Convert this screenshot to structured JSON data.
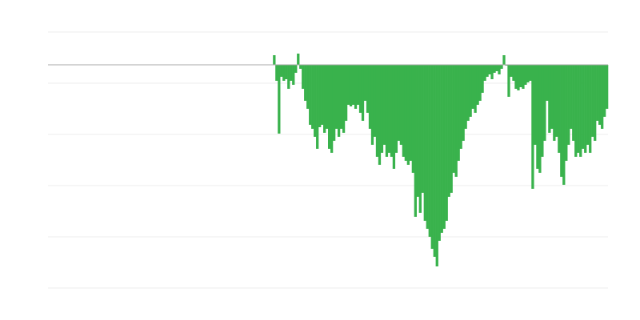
{
  "chart_data": {
    "type": "bar",
    "title": "",
    "xlabel": "",
    "ylabel": "",
    "ylim": [
      -279,
      41
    ],
    "gridlines": [
      41,
      -23,
      -87,
      -151,
      -215,
      -279
    ],
    "grid": true,
    "baseline": 0,
    "x_start_index": 94,
    "x_count": 234,
    "colors": {
      "bar": "#39b24c",
      "grid": "#eeeeee",
      "baseline": "#aaaaaa"
    },
    "values": [
      12,
      -20,
      -86,
      -15,
      -20,
      -18,
      -30,
      -20,
      -25,
      -10,
      14,
      -5,
      -30,
      -45,
      -55,
      -75,
      -80,
      -90,
      -105,
      -78,
      -75,
      -85,
      -80,
      -105,
      -110,
      -95,
      -80,
      -90,
      -80,
      -85,
      -70,
      -50,
      -52,
      -50,
      -55,
      -50,
      -60,
      -70,
      -45,
      -60,
      -80,
      -100,
      -90,
      -115,
      -125,
      -110,
      -100,
      -115,
      -110,
      -115,
      -130,
      -110,
      -95,
      -100,
      -115,
      -120,
      -125,
      -120,
      -135,
      -190,
      -165,
      -185,
      -160,
      -195,
      -205,
      -215,
      -230,
      -240,
      -252,
      -220,
      -210,
      -205,
      -195,
      -165,
      -160,
      -135,
      -140,
      -120,
      -105,
      -95,
      -80,
      -70,
      -65,
      -55,
      -60,
      -50,
      -45,
      -35,
      -20,
      -15,
      -12,
      -18,
      -10,
      -8,
      -12,
      -5,
      12,
      0,
      -40,
      -15,
      -20,
      -30,
      -32,
      -28,
      -30,
      -25,
      -22,
      -20,
      -155,
      -100,
      -130,
      -135,
      -115,
      -95,
      -45,
      -85,
      -80,
      -95,
      -90,
      -110,
      -140,
      -150,
      -120,
      -100,
      -80,
      -95,
      -115,
      -110,
      -115,
      -105,
      -110,
      -100,
      -110,
      -90,
      -95,
      -70,
      -75,
      -80,
      -65,
      -55
    ]
  }
}
